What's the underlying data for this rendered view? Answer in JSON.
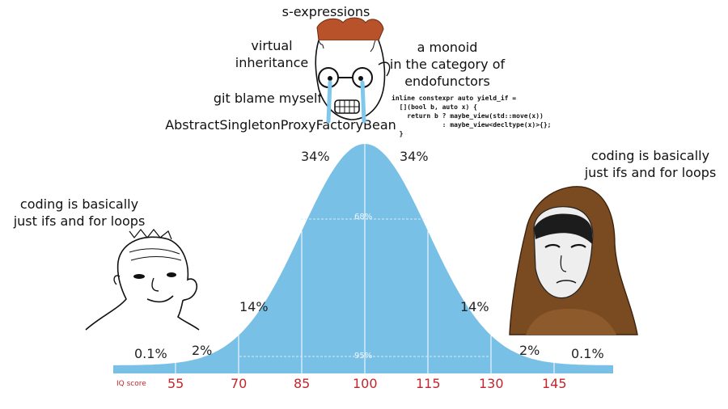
{
  "colors": {
    "curve": "#79c0e6",
    "ticks": "#c0262c",
    "hood": "#7a4a21"
  },
  "chart_data": {
    "type": "area",
    "x_ticks": [
      55,
      70,
      85,
      100,
      115,
      130,
      145
    ],
    "axis_label": "IQ score",
    "band_percents": {
      "far_left": "0.1%",
      "left_outer": "2%",
      "left_mid": "14%",
      "left_center": "34%",
      "right_center": "34%",
      "right_mid": "14%",
      "right_outer": "2%",
      "far_right": "0.1%"
    },
    "inner_labels": {
      "center": "68%",
      "wide": "95%"
    }
  },
  "characters": {
    "left": {
      "caption": "coding is basically\njust ifs and for loops",
      "icon": "wojak-smug-icon"
    },
    "middle": {
      "labels": {
        "s_expressions": "s-expressions",
        "virtual_inheritance": "virtual\ninheritance",
        "monoid": "a monoid\nin the category of\nendofunctors",
        "git_blame": "git blame myself",
        "factory_bean": "AbstractSingletonProxyFactoryBean"
      },
      "code": "inline constexpr auto yield_if =\n  [](bool b, auto x) {\n    return b ? maybe_view(std::move(x))\n             : maybe_view<decltype(x)>{};\n  }",
      "icon": "wojak-crying-icon"
    },
    "right": {
      "caption": "coding is basically\njust ifs and for loops",
      "icon": "hooded-monk-icon"
    }
  }
}
